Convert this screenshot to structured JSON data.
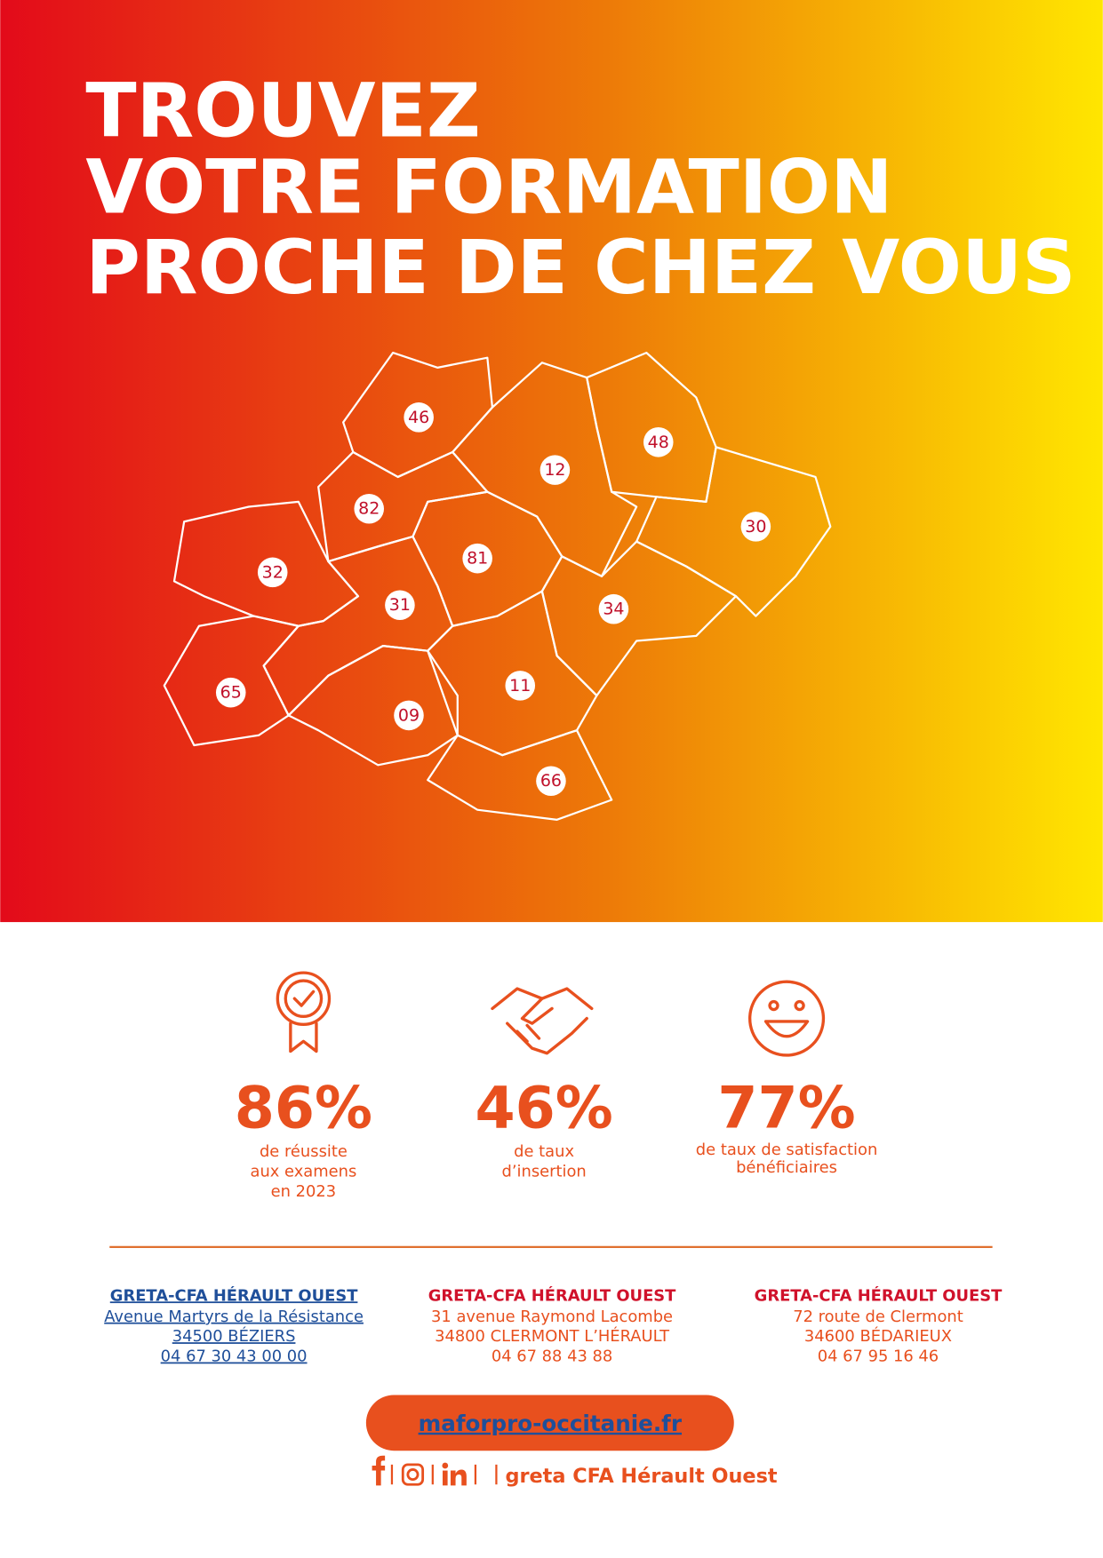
{
  "header": {
    "title_lines": [
      "TROUVEZ",
      "VOTRE FORMATION",
      "PROCHE DE CHEZ VOUS"
    ]
  },
  "map": {
    "departments": [
      "46",
      "12",
      "48",
      "82",
      "30",
      "32",
      "81",
      "31",
      "34",
      "65",
      "11",
      "09",
      "66"
    ]
  },
  "stats": [
    {
      "value": "86%",
      "caption_lines": [
        "de réussite",
        "aux examens",
        "en 2023"
      ]
    },
    {
      "value": "46%",
      "caption_lines": [
        "de taux",
        "d’insertion"
      ]
    },
    {
      "value": "77%",
      "caption_lines": [
        "de taux de satisfaction",
        "bénéficiaires"
      ]
    }
  ],
  "addresses": [
    {
      "name": "GRETA-CFA HÉRAULT OUEST",
      "lines": [
        "Avenue Martyrs de la Résistance",
        "34500 BÉZIERS",
        "04 67 30 43 00 00"
      ]
    },
    {
      "name": "GRETA-CFA HÉRAULT OUEST",
      "lines": [
        "31 avenue Raymond Lacombe",
        "34800 CLERMONT L’HÉRAULT",
        "04 67 88 43 88"
      ]
    },
    {
      "name": "GRETA-CFA HÉRAULT OUEST",
      "lines": [
        "72 route de Clermont",
        "34600 BÉDARIEUX",
        "04 67 95 16 46"
      ]
    }
  ],
  "website": "maforpro-occitanie.fr",
  "social": {
    "label": "greta CFA Hérault Ouest"
  }
}
